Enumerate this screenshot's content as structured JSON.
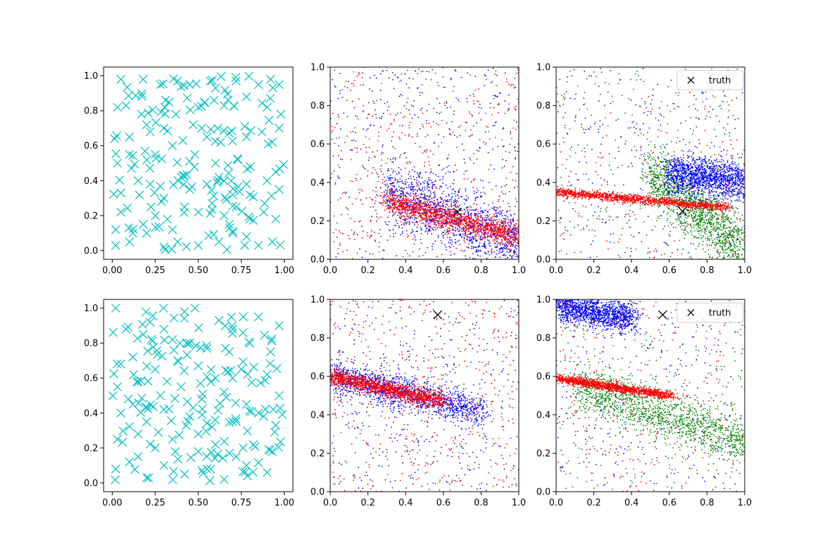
{
  "chart_data": [
    {
      "type": "scatter",
      "panel": "row1-col1",
      "title": "",
      "xlim": [
        -0.05,
        1.05
      ],
      "ylim": [
        -0.05,
        1.05
      ],
      "xticks": [
        "0.00",
        "0.25",
        "0.50",
        "0.75",
        "1.00"
      ],
      "yticks": [
        "0.0",
        "0.2",
        "0.4",
        "0.6",
        "0.8",
        "1.0"
      ],
      "series": [
        {
          "name": "samples",
          "marker": "x",
          "color": "#00bfbf",
          "distribution": "uniform random on [0,1]x[0,1]",
          "count": 200,
          "points": [
            [
              0.05,
              0.98
            ],
            [
              0.18,
              0.98
            ],
            [
              0.28,
              0.95
            ],
            [
              0.38,
              0.97
            ],
            [
              0.45,
              0.95
            ],
            [
              0.57,
              0.97
            ],
            [
              0.6,
              0.93
            ],
            [
              0.72,
              0.97
            ],
            [
              0.85,
              0.95
            ],
            [
              0.92,
              0.98
            ],
            [
              0.97,
              0.95
            ],
            [
              0.03,
              0.82
            ],
            [
              0.08,
              0.83
            ],
            [
              0.17,
              0.78
            ],
            [
              0.2,
              0.72
            ],
            [
              0.33,
              0.85
            ],
            [
              0.37,
              0.78
            ],
            [
              0.5,
              0.82
            ],
            [
              0.47,
              0.72
            ],
            [
              0.52,
              0.7
            ],
            [
              0.65,
              0.83
            ],
            [
              0.78,
              0.88
            ],
            [
              0.9,
              0.82
            ],
            [
              0.98,
              0.78
            ],
            [
              0.1,
              0.65
            ],
            [
              0.22,
              0.68
            ],
            [
              0.3,
              0.7
            ],
            [
              0.41,
              0.63
            ],
            [
              0.55,
              0.65
            ],
            [
              0.63,
              0.62
            ],
            [
              0.78,
              0.65
            ],
            [
              0.87,
              0.68
            ],
            [
              0.93,
              0.62
            ],
            [
              0.03,
              0.5
            ],
            [
              0.1,
              0.55
            ],
            [
              0.25,
              0.55
            ],
            [
              0.35,
              0.6
            ],
            [
              0.48,
              0.55
            ],
            [
              0.6,
              0.5
            ],
            [
              0.73,
              0.52
            ],
            [
              0.95,
              0.45
            ],
            [
              0.05,
              0.33
            ],
            [
              0.15,
              0.4
            ],
            [
              0.22,
              0.38
            ],
            [
              0.3,
              0.3
            ],
            [
              0.4,
              0.42
            ],
            [
              0.45,
              0.35
            ],
            [
              0.55,
              0.38
            ],
            [
              0.62,
              0.42
            ],
            [
              0.7,
              0.32
            ],
            [
              0.78,
              0.38
            ],
            [
              0.9,
              0.4
            ],
            [
              0.97,
              0.35
            ],
            [
              0.05,
              0.22
            ],
            [
              0.12,
              0.1
            ],
            [
              0.18,
              0.15
            ],
            [
              0.25,
              0.2
            ],
            [
              0.32,
              0.18
            ],
            [
              0.42,
              0.25
            ],
            [
              0.5,
              0.22
            ],
            [
              0.58,
              0.27
            ],
            [
              0.65,
              0.2
            ],
            [
              0.72,
              0.25
            ],
            [
              0.8,
              0.18
            ],
            [
              0.88,
              0.22
            ],
            [
              0.95,
              0.18
            ],
            [
              0.02,
              0.03
            ],
            [
              0.1,
              0.05
            ],
            [
              0.2,
              0.1
            ],
            [
              0.3,
              0.02
            ],
            [
              0.38,
              0.05
            ],
            [
              0.5,
              0.03
            ],
            [
              0.62,
              0.05
            ],
            [
              0.7,
              0.1
            ],
            [
              0.78,
              0.08
            ],
            [
              0.85,
              0.03
            ],
            [
              0.93,
              0.05
            ],
            [
              0.02,
              0.12
            ],
            [
              0.35,
              0.12
            ],
            [
              0.68,
              0.15
            ]
          ]
        }
      ]
    },
    {
      "type": "scatter",
      "panel": "row1-col2",
      "xlim": [
        0,
        1
      ],
      "ylim": [
        0,
        1
      ],
      "xticks": [
        "0.0",
        "0.2",
        "0.4",
        "0.6",
        "0.8",
        "1.0"
      ],
      "yticks": [
        "0.0",
        "0.2",
        "0.4",
        "0.6",
        "0.8",
        "1.0"
      ],
      "series": [
        {
          "name": "blue samples",
          "color": "#0000ff",
          "marker": ".",
          "band": {
            "x0": 0.3,
            "y0": 0.35,
            "x1": 1.0,
            "y1": 0.08,
            "spread": 0.08
          },
          "background": true
        },
        {
          "name": "red samples",
          "color": "#ff0000",
          "marker": ".",
          "band": {
            "x0": 0.3,
            "y0": 0.3,
            "x1": 1.0,
            "y1": 0.12,
            "spread": 0.03
          },
          "background": true
        },
        {
          "name": "truth",
          "color": "#000000",
          "marker": "x",
          "points": [
            [
              0.675,
              0.245
            ]
          ]
        }
      ]
    },
    {
      "type": "scatter",
      "panel": "row1-col3",
      "xlim": [
        0,
        1
      ],
      "ylim": [
        0,
        1
      ],
      "xticks": [
        "0.0",
        "0.2",
        "0.4",
        "0.6",
        "0.8",
        "1.0"
      ],
      "yticks": [
        "0.0",
        "0.2",
        "0.4",
        "0.6",
        "0.8",
        "1.0"
      ],
      "legend": {
        "position": "top-right",
        "entries": [
          "truth"
        ]
      },
      "series": [
        {
          "name": "green samples",
          "color": "#008000",
          "marker": ".",
          "band": {
            "x0": 0.5,
            "y0": 0.45,
            "x1": 1.0,
            "y1": 0.05,
            "spread": 0.08
          }
        },
        {
          "name": "blue samples",
          "color": "#0000ff",
          "marker": ".",
          "band": {
            "x0": 0.6,
            "y0": 0.45,
            "x1": 1.0,
            "y1": 0.4,
            "spread": 0.05
          }
        },
        {
          "name": "red samples",
          "color": "#ff0000",
          "marker": ".",
          "band": {
            "x0": 0.0,
            "y0": 0.35,
            "x1": 0.9,
            "y1": 0.27,
            "spread": 0.01
          }
        },
        {
          "name": "truth",
          "color": "#000000",
          "marker": "x",
          "points": [
            [
              0.67,
              0.25
            ]
          ]
        }
      ]
    },
    {
      "type": "scatter",
      "panel": "row2-col1",
      "xlim": [
        -0.05,
        1.05
      ],
      "ylim": [
        -0.05,
        1.05
      ],
      "xticks": [
        "0.00",
        "0.25",
        "0.50",
        "0.75",
        "1.00"
      ],
      "yticks": [
        "0.0",
        "0.2",
        "0.4",
        "0.6",
        "0.8",
        "1.0"
      ],
      "series": [
        {
          "name": "samples",
          "marker": "x",
          "color": "#00bfbf",
          "distribution": "uniform random on [0,1]x[0,1]",
          "count": 200,
          "points": [
            [
              0.02,
              1.0
            ],
            [
              0.22,
              0.92
            ],
            [
              0.3,
              0.88
            ],
            [
              0.42,
              0.98
            ],
            [
              0.48,
              1.0
            ],
            [
              0.62,
              0.93
            ],
            [
              0.7,
              0.88
            ],
            [
              0.85,
              0.95
            ],
            [
              0.97,
              0.9
            ],
            [
              0.08,
              0.88
            ],
            [
              0.18,
              0.85
            ],
            [
              0.35,
              0.82
            ],
            [
              0.45,
              0.8
            ],
            [
              0.55,
              0.77
            ],
            [
              0.68,
              0.75
            ],
            [
              0.8,
              0.8
            ],
            [
              0.92,
              0.75
            ],
            [
              0.05,
              0.68
            ],
            [
              0.12,
              0.72
            ],
            [
              0.25,
              0.65
            ],
            [
              0.38,
              0.7
            ],
            [
              0.5,
              0.67
            ],
            [
              0.6,
              0.6
            ],
            [
              0.75,
              0.65
            ],
            [
              0.9,
              0.62
            ],
            [
              0.03,
              0.55
            ],
            [
              0.15,
              0.58
            ],
            [
              0.28,
              0.5
            ],
            [
              0.4,
              0.55
            ],
            [
              0.52,
              0.48
            ],
            [
              0.65,
              0.52
            ],
            [
              0.78,
              0.45
            ],
            [
              0.97,
              0.5
            ],
            [
              0.05,
              0.4
            ],
            [
              0.12,
              0.45
            ],
            [
              0.2,
              0.35
            ],
            [
              0.3,
              0.42
            ],
            [
              0.45,
              0.38
            ],
            [
              0.58,
              0.32
            ],
            [
              0.7,
              0.35
            ],
            [
              0.85,
              0.4
            ],
            [
              0.95,
              0.33
            ],
            [
              0.03,
              0.25
            ],
            [
              0.15,
              0.28
            ],
            [
              0.25,
              0.2
            ],
            [
              0.35,
              0.25
            ],
            [
              0.5,
              0.18
            ],
            [
              0.6,
              0.22
            ],
            [
              0.72,
              0.15
            ],
            [
              0.82,
              0.22
            ],
            [
              0.93,
              0.18
            ],
            [
              0.02,
              0.08
            ],
            [
              0.1,
              0.12
            ],
            [
              0.2,
              0.03
            ],
            [
              0.3,
              0.1
            ],
            [
              0.42,
              0.05
            ],
            [
              0.55,
              0.08
            ],
            [
              0.65,
              0.02
            ],
            [
              0.78,
              0.1
            ],
            [
              0.9,
              0.06
            ],
            [
              0.5,
              0.28
            ],
            [
              0.15,
              0.15
            ]
          ]
        }
      ]
    },
    {
      "type": "scatter",
      "panel": "row2-col2",
      "xlim": [
        0,
        1
      ],
      "ylim": [
        0,
        1
      ],
      "xticks": [
        "0.0",
        "0.2",
        "0.4",
        "0.6",
        "0.8",
        "1.0"
      ],
      "yticks": [
        "0.0",
        "0.2",
        "0.4",
        "0.6",
        "0.8",
        "1.0"
      ],
      "series": [
        {
          "name": "blue samples",
          "color": "#0000ff",
          "marker": ".",
          "band": {
            "x0": 0.0,
            "y0": 0.6,
            "x1": 0.8,
            "y1": 0.42,
            "spread": 0.04
          },
          "background": true
        },
        {
          "name": "red samples",
          "color": "#ff0000",
          "marker": ".",
          "band": {
            "x0": 0.0,
            "y0": 0.6,
            "x1": 0.6,
            "y1": 0.47,
            "spread": 0.02
          },
          "background": true
        },
        {
          "name": "truth",
          "color": "#000000",
          "marker": "x",
          "points": [
            [
              0.57,
              0.92
            ]
          ]
        }
      ]
    },
    {
      "type": "scatter",
      "panel": "row2-col3",
      "xlim": [
        0,
        1
      ],
      "ylim": [
        0,
        1
      ],
      "xticks": [
        "0.0",
        "0.2",
        "0.4",
        "0.6",
        "0.8",
        "1.0"
      ],
      "yticks": [
        "0.0",
        "0.2",
        "0.4",
        "0.6",
        "0.8",
        "1.0"
      ],
      "legend": {
        "position": "top-right",
        "entries": [
          "truth"
        ]
      },
      "series": [
        {
          "name": "green samples",
          "color": "#008000",
          "marker": ".",
          "band": {
            "x0": 0.1,
            "y0": 0.55,
            "x1": 1.0,
            "y1": 0.25,
            "spread": 0.06
          }
        },
        {
          "name": "blue samples",
          "color": "#0000ff",
          "marker": ".",
          "band": {
            "x0": 0.0,
            "y0": 0.97,
            "x1": 0.4,
            "y1": 0.9,
            "spread": 0.04
          }
        },
        {
          "name": "red samples",
          "color": "#ff0000",
          "marker": ".",
          "band": {
            "x0": 0.0,
            "y0": 0.59,
            "x1": 0.6,
            "y1": 0.5,
            "spread": 0.01
          }
        },
        {
          "name": "truth",
          "color": "#000000",
          "marker": "x",
          "points": [
            [
              0.565,
              0.92
            ]
          ]
        }
      ]
    }
  ],
  "legend_label": "truth"
}
